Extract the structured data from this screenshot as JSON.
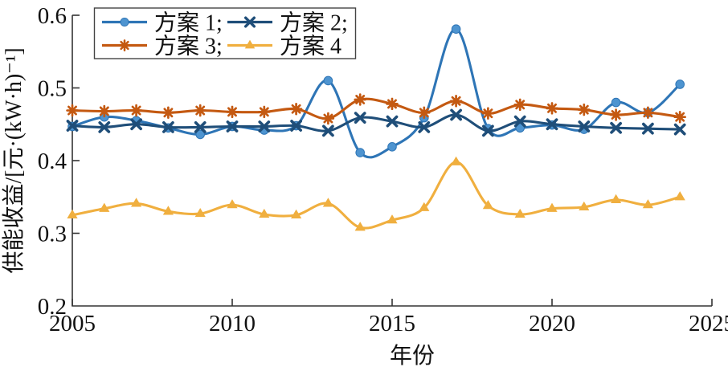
{
  "chart_data": {
    "type": "line",
    "title": "",
    "xlabel": "年份",
    "ylabel": "供能收益/[元·(kW·h)⁻¹]",
    "xlim": [
      2005,
      2025
    ],
    "ylim": [
      0.2,
      0.6
    ],
    "xticks": [
      2005,
      2010,
      2015,
      2020,
      2025
    ],
    "xtick_labels": [
      "2005",
      "2010",
      "2015",
      "2020",
      "2025"
    ],
    "yticks": [
      0.2,
      0.3,
      0.4,
      0.5,
      0.6
    ],
    "ytick_labels": [
      "0.2",
      "0.3",
      "0.4",
      "0.5",
      "0.6"
    ],
    "grid": false,
    "legend_position": "top-left-inside",
    "x": [
      2005,
      2006,
      2007,
      2008,
      2009,
      2010,
      2011,
      2012,
      2013,
      2014,
      2015,
      2016,
      2017,
      2018,
      2019,
      2020,
      2021,
      2022,
      2023,
      2024
    ],
    "series": [
      {
        "name": "方案 1;",
        "color": "#2E75B6",
        "marker": "circle",
        "marker_fill": "#4E94D0",
        "values": [
          0.447,
          0.46,
          0.455,
          0.445,
          0.436,
          0.447,
          0.442,
          0.448,
          0.51,
          0.411,
          0.419,
          0.459,
          0.581,
          0.444,
          0.445,
          0.449,
          0.443,
          0.48,
          0.466,
          0.505
        ]
      },
      {
        "name": "方案 2;",
        "color": "#1F4E79",
        "marker": "x",
        "marker_fill": "#1F4E79",
        "values": [
          0.448,
          0.446,
          0.45,
          0.446,
          0.446,
          0.447,
          0.447,
          0.448,
          0.441,
          0.459,
          0.454,
          0.446,
          0.463,
          0.441,
          0.454,
          0.45,
          0.447,
          0.445,
          0.444,
          0.443
        ]
      },
      {
        "name": "方案 3;",
        "color": "#C45911",
        "marker": "asterisk",
        "marker_fill": "#C45911",
        "values": [
          0.469,
          0.468,
          0.469,
          0.466,
          0.469,
          0.467,
          0.467,
          0.471,
          0.458,
          0.484,
          0.478,
          0.466,
          0.482,
          0.465,
          0.477,
          0.472,
          0.47,
          0.463,
          0.466,
          0.46
        ]
      },
      {
        "name": "方案 4",
        "color": "#F0AF3F",
        "marker": "triangle",
        "marker_fill": "#F0AF3F",
        "values": [
          0.325,
          0.334,
          0.341,
          0.33,
          0.327,
          0.339,
          0.326,
          0.325,
          0.341,
          0.308,
          0.318,
          0.335,
          0.398,
          0.338,
          0.326,
          0.334,
          0.336,
          0.346,
          0.339,
          0.35
        ]
      }
    ],
    "axis_color": "#333333",
    "background_color": "#ffffff"
  }
}
